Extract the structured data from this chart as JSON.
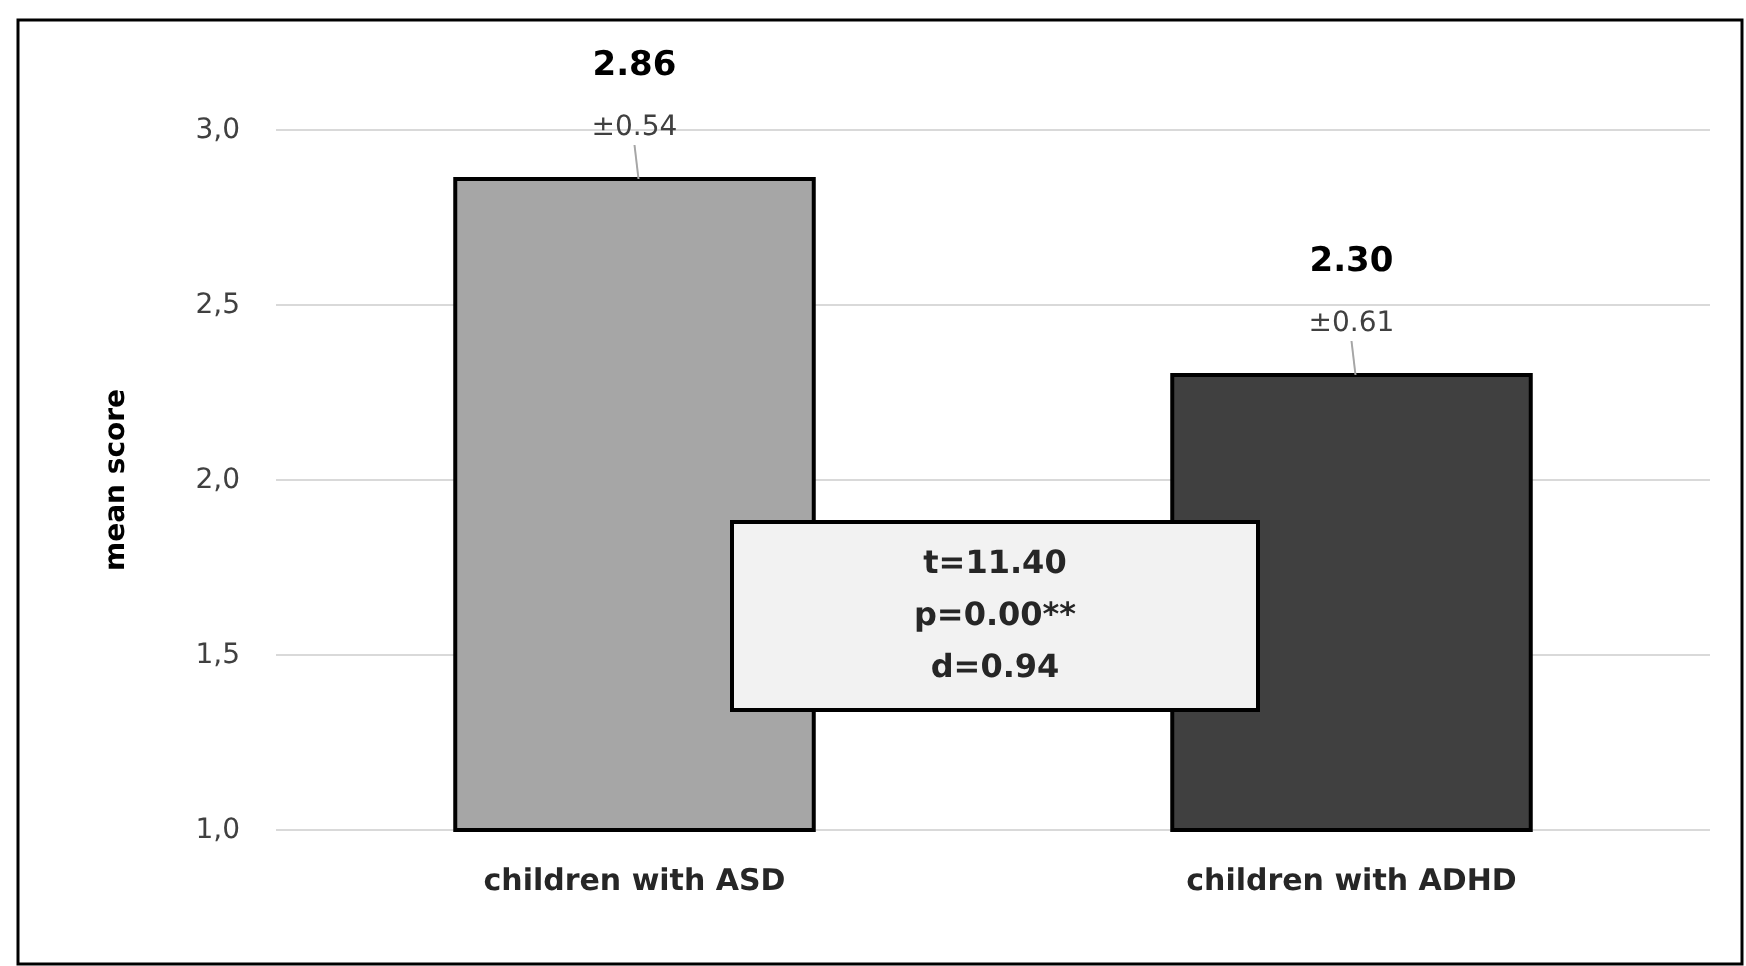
{
  "chart_data": {
    "type": "bar",
    "ylabel": "mean score",
    "categories": [
      "children with ASD",
      "children with ADHD"
    ],
    "values": [
      2.86,
      2.3
    ],
    "value_labels": [
      "2.86",
      "2.30"
    ],
    "colors": [
      "#a6a6a6",
      "#404040"
    ],
    "ylim": [
      1,
      3
    ],
    "yticks": [
      {
        "value": 1,
        "label": "1,0"
      },
      {
        "value": 1.5,
        "label": "1,5"
      },
      {
        "value": 2,
        "label": "2,0"
      },
      {
        "value": 2.5,
        "label": "2,5"
      },
      {
        "value": 3,
        "label": "3,0"
      }
    ],
    "grid": "y",
    "annotations": [
      {
        "text": "±0.54",
        "x": "children with ASD",
        "y": 2.86
      },
      {
        "text": "±0.61",
        "x": "children with ADHD",
        "y": 2.3
      },
      "t=11.40\np=0.00**\nd=0.94"
    ]
  }
}
